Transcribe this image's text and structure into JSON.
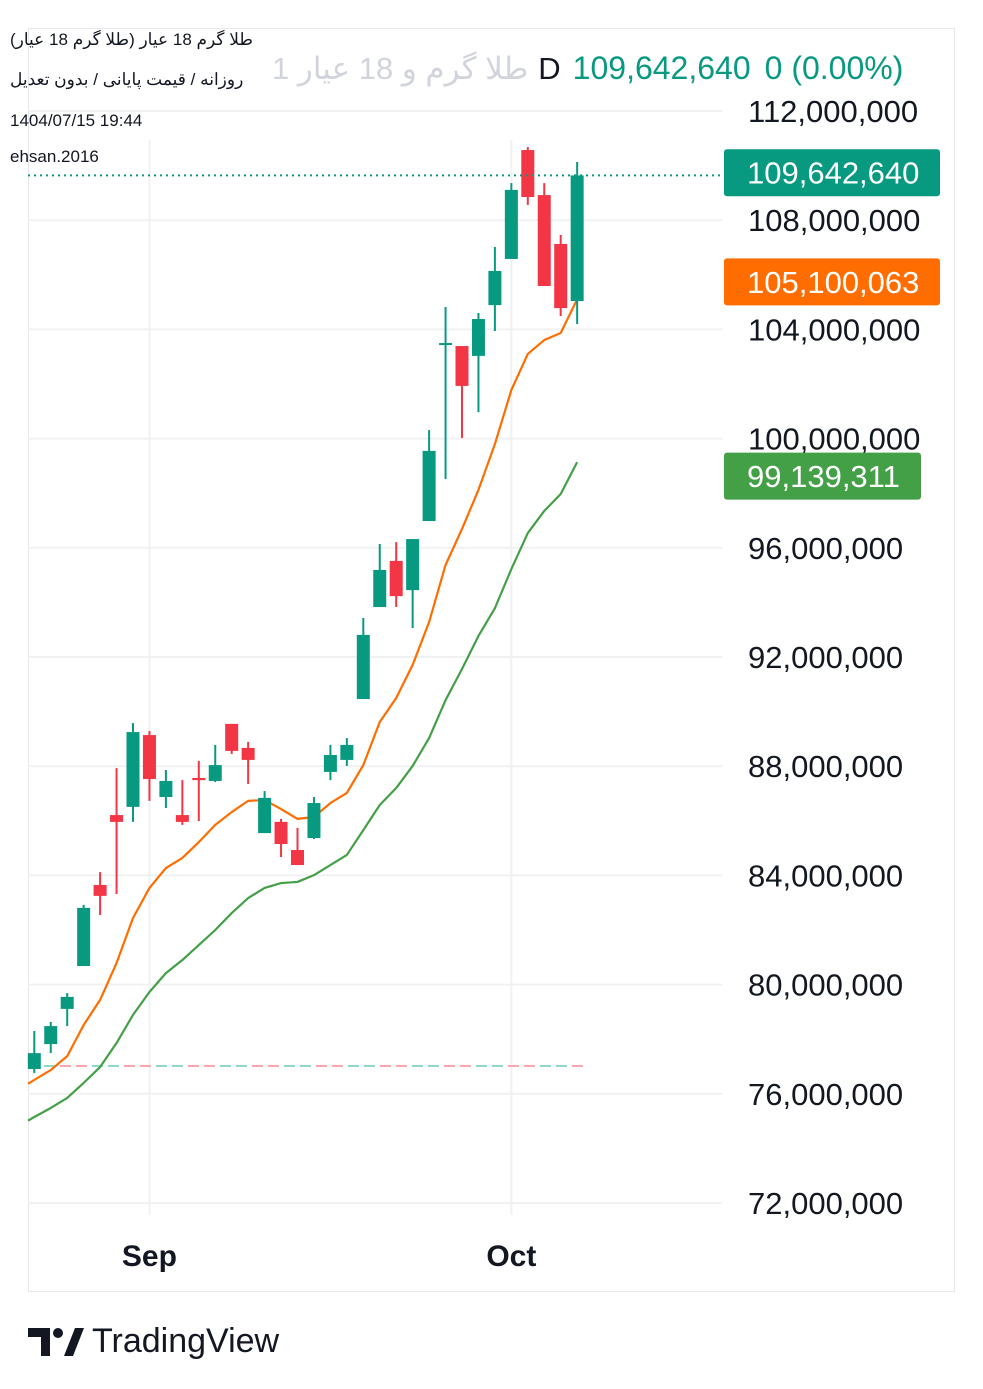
{
  "header": {
    "title": "طلا گرم 18 عیار (طلا گرم 18 عیار)",
    "subtitle": "روزانه / قیمت پایانی / بدون تعدیل",
    "datetime": "1404/07/15 19:44",
    "author": "ehsan.2016",
    "symbol_faded": "طلا گرم و 18 عیار 1",
    "interval": "D",
    "last_price": "109,642,640",
    "change": "0 (0.00%)"
  },
  "footer": {
    "brand": "TradingView"
  },
  "colors": {
    "up": "#089981",
    "down": "#F23645",
    "ma_fast": "#FF6D00",
    "ma_slow": "#43A047",
    "grid": "#f0f1f3"
  },
  "chart_data": {
    "type": "candlestick",
    "unit": "millions",
    "ylim": [
      72,
      112
    ],
    "yticks": [
      72,
      76,
      80,
      84,
      88,
      92,
      96,
      100,
      104,
      108,
      112
    ],
    "ytick_labels": [
      "72,000,000",
      "76,000,000",
      "80,000,000",
      "84,000,000",
      "88,000,000",
      "92,000,000",
      "96,000,000",
      "100,000,000",
      "104,000,000",
      "108,000,000",
      "112,000,000"
    ],
    "xticks": [
      {
        "index": 7,
        "label": "Sep"
      },
      {
        "index": 29,
        "label": "Oct"
      }
    ],
    "candles": [
      [
        76.91,
        78.3,
        76.76,
        77.49
      ],
      [
        77.82,
        78.63,
        77.49,
        78.48
      ],
      [
        79.11,
        79.69,
        78.48,
        79.55
      ],
      [
        80.68,
        82.92,
        80.68,
        82.81
      ],
      [
        83.65,
        84.12,
        82.55,
        83.25
      ],
      [
        86.21,
        87.93,
        83.32,
        85.96
      ],
      [
        86.51,
        89.58,
        85.96,
        89.25
      ],
      [
        89.14,
        89.29,
        86.73,
        87.53
      ],
      [
        86.87,
        87.86,
        86.47,
        87.46
      ],
      [
        86.21,
        87.49,
        85.85,
        85.96
      ],
      [
        87.57,
        88.19,
        85.99,
        87.49
      ],
      [
        87.46,
        88.78,
        87.42,
        88.04
      ],
      [
        89.55,
        89.55,
        88.45,
        88.56
      ],
      [
        88.67,
        88.89,
        87.35,
        88.23
      ],
      [
        85.55,
        87.09,
        85.55,
        86.84
      ],
      [
        85.96,
        86.07,
        84.67,
        85.15
      ],
      [
        84.93,
        85.74,
        84.38,
        84.38
      ],
      [
        85.37,
        86.87,
        85.33,
        86.65
      ],
      [
        87.79,
        88.78,
        87.49,
        88.41
      ],
      [
        88.23,
        89.03,
        88.01,
        88.78
      ],
      [
        90.46,
        93.43,
        90.46,
        92.81
      ],
      [
        93.83,
        96.14,
        93.83,
        95.19
      ],
      [
        95.52,
        96.21,
        93.83,
        94.23
      ],
      [
        94.45,
        96.32,
        93.06,
        96.32
      ],
      [
        96.98,
        100.31,
        96.98,
        99.55
      ],
      [
        103.43,
        104.82,
        98.52,
        103.5
      ],
      [
        103.39,
        103.39,
        100.02,
        101.93
      ],
      [
        103.03,
        104.6,
        100.97,
        104.38
      ],
      [
        104.89,
        107.02,
        103.94,
        106.14
      ],
      [
        106.58,
        109.36,
        106.58,
        109.11
      ],
      [
        110.57,
        110.68,
        108.56,
        108.85
      ],
      [
        108.92,
        109.36,
        105.59,
        105.59
      ],
      [
        107.13,
        107.46,
        104.49,
        104.78
      ],
      [
        105.04,
        110.13,
        104.2,
        109.64
      ]
    ],
    "candle_fields": [
      "open",
      "high",
      "low",
      "close"
    ],
    "series": [
      {
        "name": "MA fast",
        "color": "#FF6D00",
        "values": [
          76.51,
          76.87,
          77.38,
          78.52,
          79.44,
          80.79,
          82.44,
          83.54,
          84.27,
          84.64,
          85.22,
          85.85,
          86.32,
          86.73,
          86.76,
          86.43,
          86.07,
          86.14,
          86.65,
          87.02,
          88.04,
          89.62,
          90.5,
          91.71,
          93.28,
          95.37,
          96.69,
          98.12,
          99.8,
          101.78,
          103.1,
          103.61,
          103.87,
          105.1
        ]
      },
      {
        "name": "MA slow",
        "color": "#43A047",
        "values": [
          75.15,
          75.48,
          75.85,
          76.4,
          76.98,
          77.86,
          78.89,
          79.73,
          80.42,
          80.9,
          81.45,
          82.0,
          82.62,
          83.17,
          83.54,
          83.72,
          83.76,
          84.01,
          84.38,
          84.75,
          85.66,
          86.58,
          87.2,
          88.01,
          89.03,
          90.42,
          91.56,
          92.77,
          93.79,
          95.22,
          96.54,
          97.35,
          97.97,
          99.14
        ]
      }
    ],
    "reference_line": 77.02,
    "price_labels": [
      {
        "label": "109,642,640",
        "value": 109.64,
        "color": "#089981"
      },
      {
        "label": "105,100,063",
        "value": 105.1,
        "color": "#FF6D00"
      },
      {
        "label": "99,139,311",
        "value": 99.14,
        "color": "#43A047"
      }
    ]
  }
}
